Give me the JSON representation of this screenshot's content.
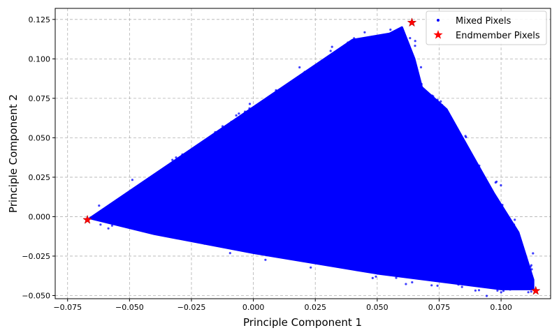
{
  "chart_data": {
    "type": "scatter",
    "title": "",
    "xlabel": "Principle Component 1",
    "ylabel": "Principle Component 2",
    "xlim": [
      -0.08,
      0.12
    ],
    "ylim": [
      -0.052,
      0.132
    ],
    "grid": true,
    "legend_position": "top-right",
    "x_ticks": [
      "−0.075",
      "−0.050",
      "−0.025",
      "0.000",
      "0.025",
      "0.050",
      "0.075",
      "0.100"
    ],
    "x_tick_values": [
      -0.075,
      -0.05,
      -0.025,
      0.0,
      0.025,
      0.05,
      0.075,
      0.1
    ],
    "y_ticks": [
      "−0.050",
      "−0.025",
      "0.000",
      "0.025",
      "0.050",
      "0.075",
      "0.100",
      "0.125"
    ],
    "y_tick_values": [
      -0.05,
      -0.025,
      0.0,
      0.025,
      0.05,
      0.075,
      0.1,
      0.125
    ],
    "series": [
      {
        "name": "Mixed Pixels",
        "color": "#0000ff",
        "marker": "dot",
        "region_outline": [
          [
            -0.066,
            -0.001
          ],
          [
            0.04,
            0.112
          ],
          [
            0.055,
            0.116
          ],
          [
            0.06,
            0.12
          ],
          [
            0.065,
            0.1
          ],
          [
            0.068,
            0.082
          ],
          [
            0.078,
            0.068
          ],
          [
            0.088,
            0.04
          ],
          [
            0.097,
            0.015
          ],
          [
            0.107,
            -0.01
          ],
          [
            0.113,
            -0.04
          ],
          [
            0.113,
            -0.046
          ],
          [
            0.1,
            -0.046
          ],
          [
            0.05,
            -0.036
          ],
          [
            0.0,
            -0.023
          ],
          [
            -0.04,
            -0.011
          ]
        ]
      },
      {
        "name": "Endmember Pixels",
        "color": "#ff0000",
        "marker": "star",
        "points": [
          {
            "x": -0.067,
            "y": -0.002
          },
          {
            "x": 0.064,
            "y": 0.123
          },
          {
            "x": 0.114,
            "y": -0.047
          }
        ]
      }
    ]
  }
}
